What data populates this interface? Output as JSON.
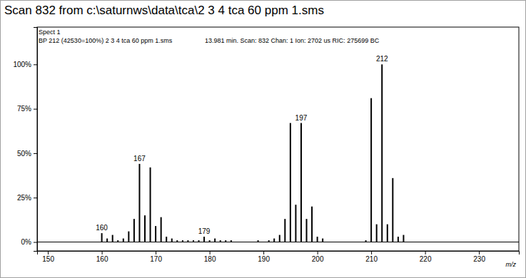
{
  "chart_data": {
    "type": "bar",
    "title": "Scan 832 from c:\\saturnws\\data\\tca\\2 3 4 tca 60 ppm 1.sms",
    "annotations": [
      "Spect 1",
      "BP 212 (42530=100%) 2 3 4 tca 60 ppm 1.sms",
      "13.981 min. Scan: 832 Chan: 1 Ion: 2702 us RIC: 275699 BC"
    ],
    "x_label": "m/z",
    "x": [
      160,
      161,
      162,
      163,
      164,
      165,
      166,
      167,
      168,
      169,
      170,
      171,
      172,
      173,
      174,
      175,
      176,
      177,
      178,
      179,
      180,
      181,
      182,
      183,
      184,
      189,
      191,
      192,
      193,
      194,
      195,
      196,
      197,
      198,
      199,
      200,
      201,
      209,
      210,
      211,
      212,
      213,
      214,
      215,
      216
    ],
    "values": [
      5,
      2,
      4,
      1,
      2,
      6,
      13,
      44,
      15,
      42,
      9,
      14,
      3,
      2,
      1,
      1,
      1,
      1,
      1,
      3,
      1,
      2,
      1,
      1,
      1,
      1,
      1,
      2,
      4,
      13,
      67,
      21,
      67,
      13,
      20,
      3,
      2,
      1,
      81,
      10,
      100,
      10,
      36,
      3,
      4
    ],
    "peak_labels": [
      160,
      167,
      179,
      197,
      212
    ],
    "color": "#000000",
    "xlim": [
      148,
      237.4
    ],
    "xticks": [
      150,
      160,
      170,
      180,
      190,
      200,
      210,
      220,
      230
    ],
    "ylim": [
      -5,
      121
    ],
    "yticks": [
      {
        "value": 0,
        "label": "0%"
      },
      {
        "value": 25,
        "label": "25%"
      },
      {
        "value": 50,
        "label": "50%"
      },
      {
        "value": 75,
        "label": "75%"
      },
      {
        "value": 100,
        "label": "100%"
      }
    ],
    "grid": false
  }
}
